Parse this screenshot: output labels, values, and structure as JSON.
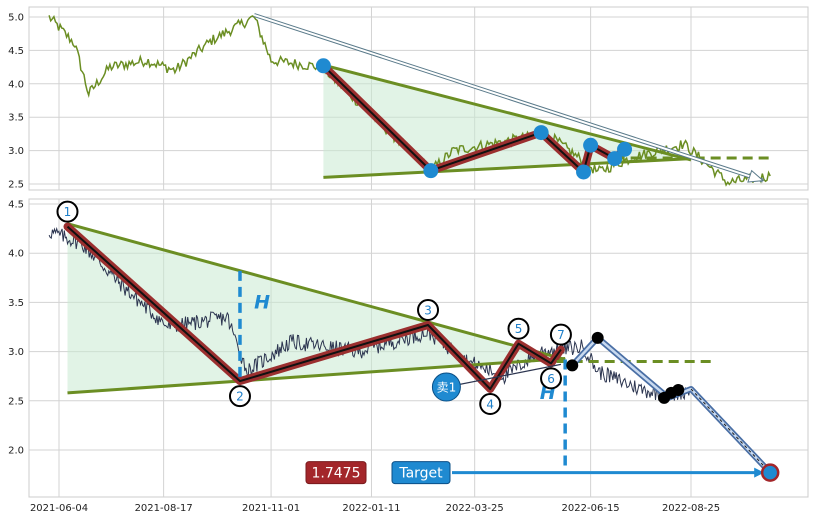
{
  "chart_data": [
    {
      "type": "line",
      "panel": "top",
      "ylim": [
        2.42,
        5.18
      ],
      "yticks": [
        "2.5",
        "3.0",
        "3.5",
        "4.0",
        "4.5",
        "5.0"
      ],
      "series_color": "#6b8e23",
      "anchors": [
        {
          "x": "2021-05-28",
          "y": 5.0
        },
        {
          "x": "2021-06-15",
          "y": 4.6
        },
        {
          "x": "2021-06-25",
          "y": 3.85
        },
        {
          "x": "2021-07-10",
          "y": 4.25
        },
        {
          "x": "2021-08-05",
          "y": 4.35
        },
        {
          "x": "2021-08-25",
          "y": 4.2
        },
        {
          "x": "2021-09-20",
          "y": 4.65
        },
        {
          "x": "2021-10-20",
          "y": 5.0
        },
        {
          "x": "2021-11-01",
          "y": 4.35
        },
        {
          "x": "2021-12-07",
          "y": 4.25
        },
        {
          "x": "2022-01-10",
          "y": 3.55
        },
        {
          "x": "2022-02-22",
          "y": 2.7
        },
        {
          "x": "2022-03-10",
          "y": 3.0
        },
        {
          "x": "2022-05-15",
          "y": 3.25
        },
        {
          "x": "2022-06-20",
          "y": 2.68
        },
        {
          "x": "2022-07-15",
          "y": 2.9
        },
        {
          "x": "2022-08-20",
          "y": 3.1
        },
        {
          "x": "2022-09-20",
          "y": 2.52
        },
        {
          "x": "2022-10-20",
          "y": 2.62
        }
      ],
      "pivots": [
        {
          "x": "2021-12-08",
          "y": 4.27
        },
        {
          "x": "2022-02-22",
          "y": 2.7
        },
        {
          "x": "2022-05-11",
          "y": 3.27
        },
        {
          "x": "2022-06-10",
          "y": 2.68
        },
        {
          "x": "2022-06-15",
          "y": 3.08
        },
        {
          "x": "2022-07-02",
          "y": 2.88
        },
        {
          "x": "2022-07-09",
          "y": 3.02
        }
      ],
      "triangle": {
        "upper": [
          {
            "x": "2021-12-08",
            "y": 4.28
          },
          {
            "x": "2022-08-25",
            "y": 2.86
          }
        ],
        "lower": [
          {
            "x": "2021-12-08",
            "y": 2.6
          },
          {
            "x": "2022-08-25",
            "y": 2.88
          }
        ]
      },
      "dashed_level": {
        "x_start": "2022-07-02",
        "x_end": "2022-10-20",
        "y": 2.89
      },
      "arrow": {
        "from": {
          "x": "2021-10-20",
          "y": 5.03
        },
        "to": {
          "x": "2022-10-15",
          "y": 2.55
        }
      }
    },
    {
      "type": "line",
      "panel": "bottom",
      "ylim": [
        1.55,
        4.55
      ],
      "yticks": [
        "2.0",
        "2.5",
        "3.0",
        "3.5",
        "4.0",
        "4.5"
      ],
      "xticks": [
        "2021-06-04",
        "2021-08-17",
        "2021-11-01",
        "2022-01-11",
        "2022-03-25",
        "2022-06-15",
        "2022-08-25"
      ],
      "series_color": "#2c3550",
      "anchors": [
        {
          "x": "2021-05-28",
          "y": 4.22
        },
        {
          "x": "2021-06-20",
          "y": 4.1
        },
        {
          "x": "2021-07-20",
          "y": 3.65
        },
        {
          "x": "2021-08-20",
          "y": 3.25
        },
        {
          "x": "2021-10-01",
          "y": 3.35
        },
        {
          "x": "2021-10-15",
          "y": 2.8
        },
        {
          "x": "2021-11-15",
          "y": 3.1
        },
        {
          "x": "2022-01-01",
          "y": 3.0
        },
        {
          "x": "2022-02-20",
          "y": 3.2
        },
        {
          "x": "2022-03-20",
          "y": 2.9
        },
        {
          "x": "2022-04-15",
          "y": 2.75
        },
        {
          "x": "2022-05-10",
          "y": 3.0
        },
        {
          "x": "2022-06-10",
          "y": 3.05
        },
        {
          "x": "2022-06-20",
          "y": 2.8
        },
        {
          "x": "2022-07-20",
          "y": 2.62
        },
        {
          "x": "2022-08-10",
          "y": 2.55
        },
        {
          "x": "2022-08-25",
          "y": 2.62
        }
      ],
      "pivots": [
        {
          "label": "1",
          "x": "2021-06-10",
          "y": 4.27
        },
        {
          "label": "2",
          "x": "2021-10-10",
          "y": 2.7
        },
        {
          "label": "3",
          "x": "2022-02-20",
          "y": 3.27
        },
        {
          "label": "4",
          "x": "2022-04-05",
          "y": 2.62
        },
        {
          "label": "5",
          "x": "2022-04-25",
          "y": 3.08
        },
        {
          "label": "6",
          "x": "2022-05-18",
          "y": 2.88
        },
        {
          "label": "7",
          "x": "2022-05-25",
          "y": 3.02
        }
      ],
      "triangle": {
        "upper": [
          {
            "x": "2021-06-10",
            "y": 4.3
          },
          {
            "x": "2022-05-28",
            "y": 2.92
          }
        ],
        "lower": [
          {
            "x": "2021-06-10",
            "y": 2.58
          },
          {
            "x": "2022-05-28",
            "y": 2.93
          }
        ]
      },
      "dashed_level": {
        "x_start": "2022-05-22",
        "x_end": "2022-09-10",
        "y": 2.9
      },
      "h_markers": [
        {
          "label": "H",
          "x": "2021-10-10",
          "y_top": 3.82,
          "y_bottom": 2.7,
          "label_x": "2021-10-20",
          "label_y": 3.5
        },
        {
          "label": "H",
          "x": "2022-05-28",
          "y_top": 2.92,
          "y_bottom": 1.77,
          "label_x": "2022-05-10",
          "label_y": 2.58
        }
      ],
      "sell_marker": {
        "label": "卖1",
        "x": "2022-03-05",
        "y": 2.64,
        "line_to": {
          "x": "2022-05-25",
          "y": 2.87
        }
      },
      "black_dots": [
        {
          "x": "2022-06-02",
          "y": 2.86
        },
        {
          "x": "2022-06-20",
          "y": 3.14
        },
        {
          "x": "2022-08-06",
          "y": 2.53
        },
        {
          "x": "2022-08-11",
          "y": 2.58
        },
        {
          "x": "2022-08-16",
          "y": 2.61
        }
      ],
      "forecast_path": [
        {
          "x": "2022-06-02",
          "y": 2.86
        },
        {
          "x": "2022-06-20",
          "y": 3.14
        },
        {
          "x": "2022-08-09",
          "y": 2.53
        },
        {
          "x": "2022-08-25",
          "y": 2.62
        },
        {
          "x": "2022-10-20",
          "y": 1.77
        }
      ],
      "target": {
        "value": "1.7475",
        "label": "Target",
        "x": "2022-10-20",
        "y": 1.77
      }
    }
  ]
}
